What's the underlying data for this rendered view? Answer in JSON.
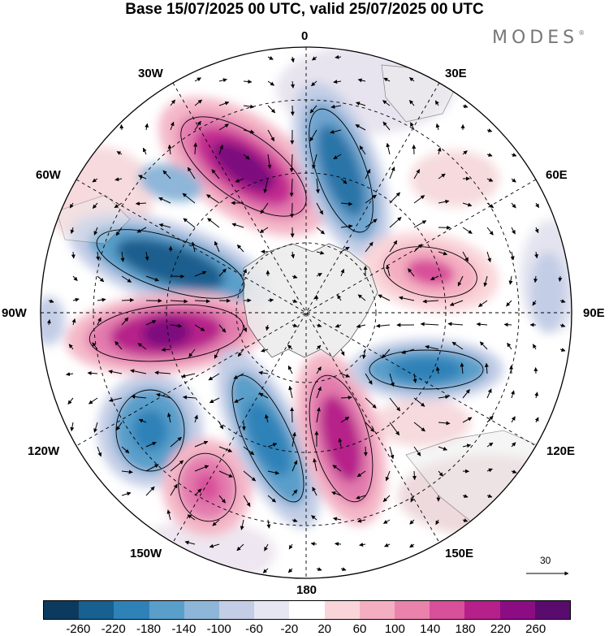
{
  "title": "Base 15/07/2025 00 UTC, valid 25/07/2025 00 UTC",
  "brand": "MODES",
  "brand_mark": "®",
  "longitude_labels": {
    "lon_0": "0",
    "lon_30e": "30E",
    "lon_60e": "60E",
    "lon_90e": "90E",
    "lon_120e": "120E",
    "lon_150e": "150E",
    "lon_180": "180",
    "lon_150w": "150W",
    "lon_120w": "120W",
    "lon_90w": "90W",
    "lon_60w": "60W",
    "lon_30w": "30W"
  },
  "reference_vector_label": "30",
  "colorbar": {
    "colors": [
      "#0c3a5e",
      "#17608f",
      "#2f82b8",
      "#5a9fca",
      "#8eb6d9",
      "#c3cde6",
      "#e6e6f2",
      "#ffffff",
      "#f9d5d9",
      "#f4aec1",
      "#ea82ab",
      "#d84f9a",
      "#b6208a",
      "#8c0d83",
      "#5a0c6e"
    ],
    "ticks": [
      "-260",
      "-220",
      "-180",
      "-140",
      "-100",
      "-60",
      "-20",
      "20",
      "60",
      "100",
      "140",
      "180",
      "220",
      "260"
    ]
  },
  "chart_data": {
    "type": "heatmap",
    "title": "Base 15/07/2025 00 UTC, valid 25/07/2025 00 UTC",
    "projection": "polar stereographic, south pole centred",
    "colorbar_levels": [
      -260,
      -220,
      -180,
      -140,
      -100,
      -60,
      -20,
      20,
      60,
      100,
      140,
      180,
      220,
      260
    ],
    "reference_vector": 30
  }
}
